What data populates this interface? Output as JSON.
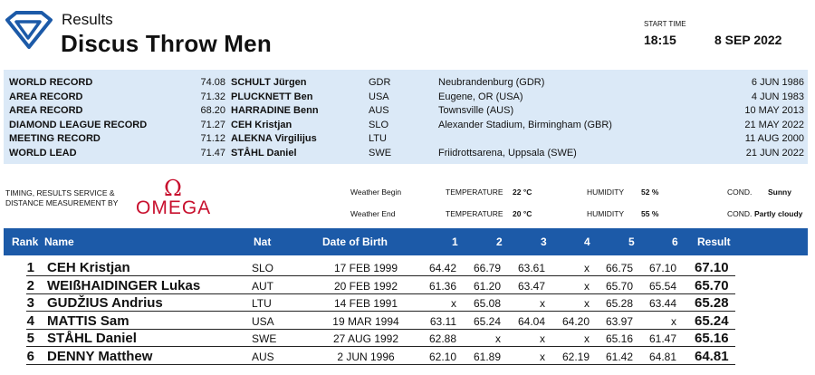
{
  "header": {
    "results_label": "Results",
    "event_title": "Discus Throw Men",
    "start_time_label": "START TIME",
    "start_time": "18:15",
    "date": "8 SEP 2022"
  },
  "records": [
    {
      "label": "WORLD RECORD",
      "mark": "74.08",
      "name": "SCHULT Jürgen",
      "nat": "GDR",
      "venue": "Neubrandenburg (GDR)",
      "date": "6 JUN 1986"
    },
    {
      "label": "AREA RECORD",
      "mark": "71.32",
      "name": "PLUCKNETT Ben",
      "nat": "USA",
      "venue": "Eugene, OR (USA)",
      "date": "4 JUN 1983"
    },
    {
      "label": "AREA RECORD",
      "mark": "68.20",
      "name": "HARRADINE Benn",
      "nat": "AUS",
      "venue": "Townsville (AUS)",
      "date": "10 MAY 2013"
    },
    {
      "label": "DIAMOND LEAGUE RECORD",
      "mark": "71.27",
      "name": "CEH Kristjan",
      "nat": "SLO",
      "venue": "Alexander Stadium, Birmingham (GBR)",
      "date": "21 MAY 2022"
    },
    {
      "label": "MEETING RECORD",
      "mark": "71.12",
      "name": "ALEKNA Virgilijus",
      "nat": "LTU",
      "venue": "",
      "date": "11 AUG 2000"
    },
    {
      "label": "WORLD LEAD",
      "mark": "71.47",
      "name": "STÅHL Daniel",
      "nat": "SWE",
      "venue": "Friidrottsarena, Uppsala (SWE)",
      "date": "21 JUN 2022"
    }
  ],
  "timing": {
    "text_line1": "TIMING, RESULTS SERVICE &",
    "text_line2": "DISTANCE MEASUREMENT BY",
    "brand": "OMEGA",
    "brand_symbol": "Ω",
    "brand_color": "#c8102e"
  },
  "weather": {
    "begin": {
      "label": "Weather Begin",
      "temp_label": "TEMPERATURE",
      "temp": "22 °C",
      "humidity_label": "HUMIDITY",
      "humidity": "52 %",
      "cond_label": "COND.",
      "cond": "Sunny"
    },
    "end": {
      "label": "Weather End",
      "temp_label": "TEMPERATURE",
      "temp": "20 °C",
      "humidity_label": "HUMIDITY",
      "humidity": "55 %",
      "cond_label": "COND.",
      "cond": "Partly cloudy"
    }
  },
  "table": {
    "header_color": "#1c5aa8",
    "columns": {
      "rank": "Rank",
      "name": "Name",
      "nat": "Nat",
      "dob": "Date of Birth",
      "t1": "1",
      "t2": "2",
      "t3": "3",
      "t4": "4",
      "t5": "5",
      "t6": "6",
      "result": "Result"
    },
    "rows": [
      {
        "rank": "1",
        "name": "CEH Kristjan",
        "nat": "SLO",
        "dob": "17 FEB 1999",
        "throws": [
          "64.42",
          "66.79",
          "63.61",
          "x",
          "66.75",
          "67.10"
        ],
        "result": "67.10"
      },
      {
        "rank": "2",
        "name": "WEIßHAIDINGER Lukas",
        "nat": "AUT",
        "dob": "20 FEB 1992",
        "throws": [
          "61.36",
          "61.20",
          "63.47",
          "x",
          "65.70",
          "65.54"
        ],
        "result": "65.70"
      },
      {
        "rank": "3",
        "name": "GUDŽIUS Andrius",
        "nat": "LTU",
        "dob": "14 FEB 1991",
        "throws": [
          "x",
          "65.08",
          "x",
          "x",
          "65.28",
          "63.44"
        ],
        "result": "65.28"
      },
      {
        "rank": "4",
        "name": "MATTIS Sam",
        "nat": "USA",
        "dob": "19 MAR 1994",
        "throws": [
          "63.11",
          "65.24",
          "64.04",
          "64.20",
          "63.97",
          "x"
        ],
        "result": "65.24"
      },
      {
        "rank": "5",
        "name": "STÅHL Daniel",
        "nat": "SWE",
        "dob": "27 AUG 1992",
        "throws": [
          "62.88",
          "x",
          "x",
          "x",
          "65.16",
          "61.47"
        ],
        "result": "65.16"
      },
      {
        "rank": "6",
        "name": "DENNY Matthew",
        "nat": "AUS",
        "dob": "2 JUN 1996",
        "throws": [
          "62.10",
          "61.89",
          "x",
          "62.19",
          "61.42",
          "64.81"
        ],
        "result": "64.81"
      }
    ]
  }
}
